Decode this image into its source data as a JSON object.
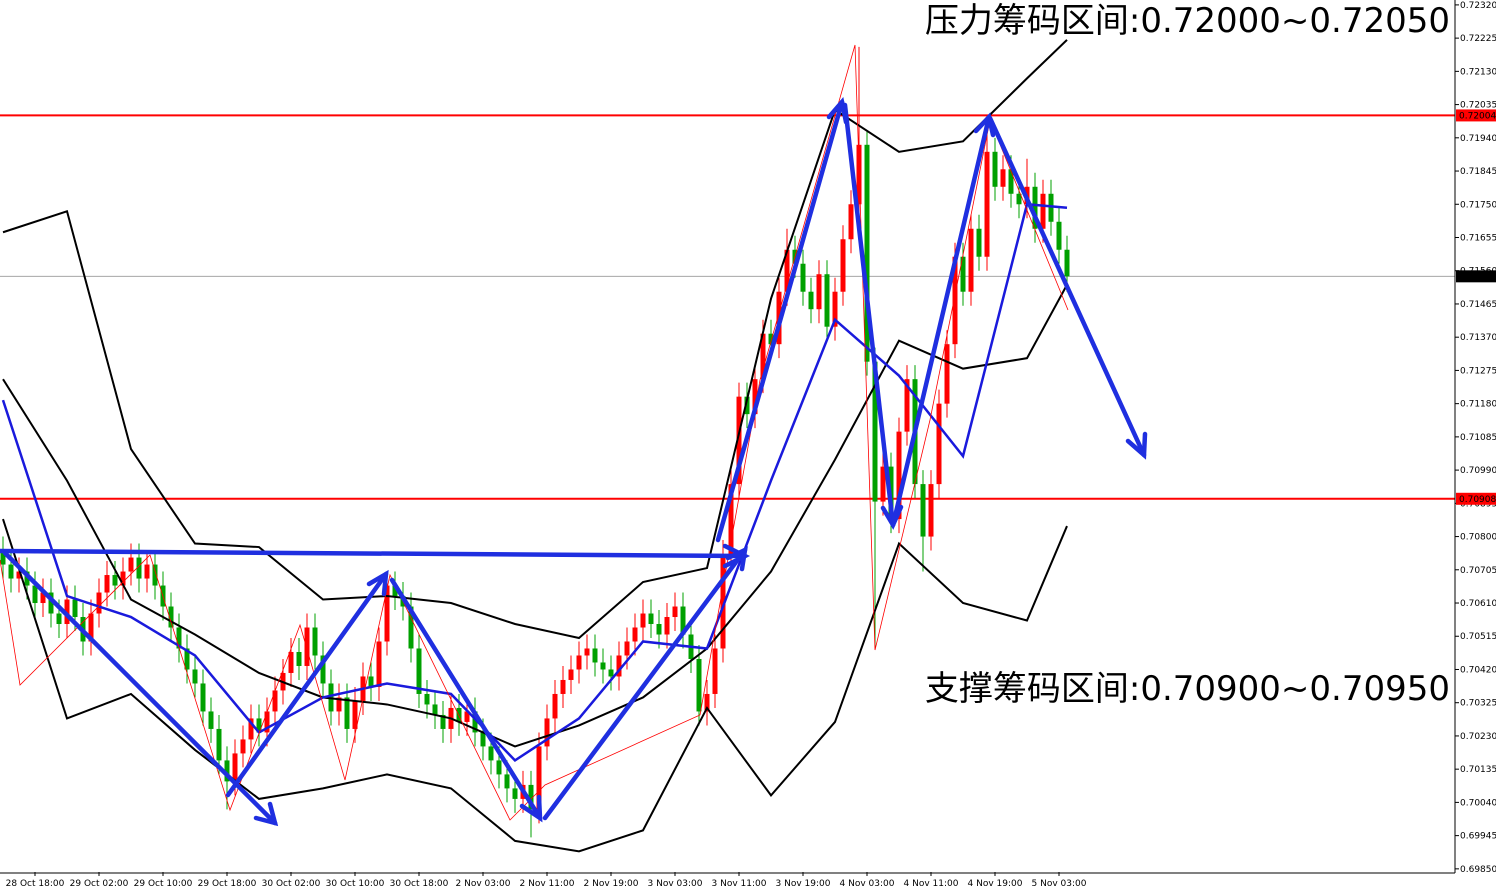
{
  "chart_data": {
    "type": "candlestick",
    "up_color": "#ff0000",
    "down_color": "#00a000",
    "ylim": [
      0.69841,
      0.72334
    ],
    "yticks": [
      {
        "value": 0.7232,
        "label": "0.72320"
      },
      {
        "value": 0.72225,
        "label": "0.72225"
      },
      {
        "value": 0.7213,
        "label": "0.72130"
      },
      {
        "value": 0.72035,
        "label": "0.72035"
      },
      {
        "value": 0.7194,
        "label": "0.71940"
      },
      {
        "value": 0.71845,
        "label": "0.71845"
      },
      {
        "value": 0.7175,
        "label": "0.71750"
      },
      {
        "value": 0.71655,
        "label": "0.71655"
      },
      {
        "value": 0.7156,
        "label": "0.71560"
      },
      {
        "value": 0.71465,
        "label": "0.71465"
      },
      {
        "value": 0.7137,
        "label": "0.71370"
      },
      {
        "value": 0.71275,
        "label": "0.71275"
      },
      {
        "value": 0.7118,
        "label": "0.71180"
      },
      {
        "value": 0.71085,
        "label": "0.71085"
      },
      {
        "value": 0.7099,
        "label": "0.70990"
      },
      {
        "value": 0.70895,
        "label": "0.70895"
      },
      {
        "value": 0.708,
        "label": "0.70800"
      },
      {
        "value": 0.70705,
        "label": "0.70705"
      },
      {
        "value": 0.7061,
        "label": "0.70610"
      },
      {
        "value": 0.70515,
        "label": "0.70515"
      },
      {
        "value": 0.7042,
        "label": "0.70420"
      },
      {
        "value": 0.70325,
        "label": "0.70325"
      },
      {
        "value": 0.7023,
        "label": "0.70230"
      },
      {
        "value": 0.70135,
        "label": "0.70135"
      },
      {
        "value": 0.7004,
        "label": "0.70040"
      },
      {
        "value": 0.69945,
        "label": "0.69945"
      },
      {
        "value": 0.6985,
        "label": "0.69850"
      }
    ],
    "hlines": [
      {
        "value": 0.72004,
        "color": "#ff0000"
      },
      {
        "value": 0.70908,
        "color": "#ff0000"
      },
      {
        "value": 0.71544,
        "color": "#999999"
      }
    ],
    "annotations": [
      "压力筹码区间:0.72000~0.72050",
      "支撑筹码区间:0.70900~0.70950"
    ],
    "categories": [
      null,
      null,
      null,
      null,
      "28 Oct 18:00",
      null,
      null,
      null,
      null,
      null,
      null,
      null,
      "29 Oct 02:00",
      null,
      null,
      null,
      null,
      null,
      null,
      null,
      "29 Oct 10:00",
      null,
      null,
      null,
      null,
      null,
      null,
      null,
      "29 Oct 18:00",
      null,
      null,
      null,
      null,
      null,
      null,
      null,
      "30 Oct 02:00",
      null,
      null,
      null,
      null,
      null,
      null,
      null,
      "30 Oct 10:00",
      null,
      null,
      null,
      null,
      null,
      null,
      null,
      "30 Oct 18:00",
      null,
      null,
      null,
      null,
      null,
      null,
      null,
      "2 Nov 03:00",
      null,
      null,
      null,
      null,
      null,
      null,
      null,
      "2 Nov 11:00",
      null,
      null,
      null,
      null,
      null,
      null,
      null,
      "2 Nov 19:00",
      null,
      null,
      null,
      null,
      null,
      null,
      null,
      "3 Nov 03:00",
      null,
      null,
      null,
      null,
      null,
      null,
      null,
      "3 Nov 11:00",
      null,
      null,
      null,
      null,
      null,
      null,
      null,
      "3 Nov 19:00",
      null,
      null,
      null,
      null,
      null,
      null,
      null,
      "4 Nov 03:00",
      null,
      null,
      null,
      null,
      null,
      null,
      null,
      "4 Nov 11:00",
      null,
      null,
      null,
      null,
      null,
      null,
      null,
      "4 Nov 19:00",
      null,
      null,
      null,
      null,
      null,
      null,
      null,
      "5 Nov 03:00",
      null
    ],
    "open": [
      0.7076,
      0.7072,
      0.7068,
      0.707,
      0.7066,
      0.7061,
      0.7064,
      0.7058,
      0.7055,
      0.7062,
      0.7057,
      0.705,
      0.7058,
      0.7064,
      0.7069,
      0.7066,
      0.707,
      0.7074,
      0.7068,
      0.7072,
      0.7066,
      0.706,
      0.7054,
      0.7048,
      0.7042,
      0.7038,
      0.703,
      0.7025,
      0.7016,
      0.701,
      0.7018,
      0.7022,
      0.7028,
      0.7024,
      0.703,
      0.7036,
      0.7041,
      0.7047,
      0.7043,
      0.7054,
      0.7046,
      0.7038,
      0.703,
      0.7034,
      0.7025,
      0.7033,
      0.704,
      0.7037,
      0.705,
      0.7066,
      0.7063,
      0.706,
      0.7048,
      0.7035,
      0.7032,
      0.7029,
      0.7025,
      0.7031,
      0.7027,
      0.703,
      0.7024,
      0.702,
      0.7016,
      0.7012,
      0.7008,
      0.7005,
      0.7009,
      0.7002,
      0.702,
      0.7028,
      0.7035,
      0.7039,
      0.7042,
      0.7046,
      0.7048,
      0.7044,
      0.7042,
      0.704,
      0.7046,
      0.705,
      0.7054,
      0.7058,
      0.7055,
      0.7052,
      0.7057,
      0.706,
      0.7052,
      0.7045,
      0.703,
      0.7035,
      0.7048,
      0.7075,
      0.7095,
      0.712,
      0.7115,
      0.7125,
      0.7138,
      0.7135,
      0.715,
      0.7162,
      0.7158,
      0.715,
      0.7145,
      0.7155,
      0.714,
      0.715,
      0.7165,
      0.7175,
      0.7192,
      0.713,
      0.709,
      0.71,
      0.7085,
      0.711,
      0.7125,
      0.7095,
      0.708,
      0.7095,
      0.7118,
      0.7135,
      0.716,
      0.715,
      0.7168,
      0.716,
      0.719,
      0.718,
      0.7185,
      0.7178,
      0.7175,
      0.718,
      0.7168,
      0.7178,
      0.717,
      0.7162
    ],
    "high": [
      0.708,
      0.7076,
      0.7074,
      0.7074,
      0.707,
      0.7068,
      0.7068,
      0.7062,
      0.7066,
      0.7066,
      0.7061,
      0.7062,
      0.7068,
      0.7073,
      0.7073,
      0.7074,
      0.7078,
      0.7078,
      0.7076,
      0.7076,
      0.707,
      0.7064,
      0.7058,
      0.7052,
      0.7046,
      0.7042,
      0.7034,
      0.7029,
      0.702,
      0.7022,
      0.7026,
      0.7032,
      0.7032,
      0.7034,
      0.704,
      0.7045,
      0.7051,
      0.7051,
      0.7058,
      0.7058,
      0.705,
      0.7042,
      0.7038,
      0.7038,
      0.7037,
      0.7044,
      0.7044,
      0.7054,
      0.707,
      0.707,
      0.7067,
      0.7064,
      0.7052,
      0.7039,
      0.7036,
      0.7033,
      0.7035,
      0.7035,
      0.7034,
      0.7034,
      0.7028,
      0.7024,
      0.702,
      0.7016,
      0.7012,
      0.7013,
      0.7013,
      0.7024,
      0.7032,
      0.7039,
      0.7043,
      0.7046,
      0.705,
      0.7052,
      0.7052,
      0.7048,
      0.7046,
      0.705,
      0.7054,
      0.7058,
      0.7062,
      0.7062,
      0.7059,
      0.7061,
      0.7064,
      0.7064,
      0.7056,
      0.7049,
      0.7039,
      0.7052,
      0.7079,
      0.7099,
      0.7124,
      0.7124,
      0.7129,
      0.7142,
      0.7142,
      0.7154,
      0.7168,
      0.7166,
      0.7162,
      0.7154,
      0.7159,
      0.7159,
      0.7154,
      0.7169,
      0.7179,
      0.722,
      0.7196,
      0.7134,
      0.7104,
      0.7104,
      0.7114,
      0.7129,
      0.7129,
      0.7099,
      0.7099,
      0.7122,
      0.7139,
      0.7164,
      0.7164,
      0.7172,
      0.7172,
      0.7196,
      0.7194,
      0.7189,
      0.7189,
      0.7182,
      0.7188,
      0.7184,
      0.7182,
      0.7182,
      0.7174,
      0.7166
    ],
    "low": [
      0.7068,
      0.7064,
      0.7064,
      0.7062,
      0.7057,
      0.7057,
      0.7054,
      0.7051,
      0.7051,
      0.7053,
      0.7046,
      0.7046,
      0.7054,
      0.706,
      0.7062,
      0.7062,
      0.7066,
      0.7064,
      0.7064,
      0.7062,
      0.7056,
      0.705,
      0.7044,
      0.7038,
      0.7034,
      0.7026,
      0.7021,
      0.7012,
      0.7002,
      0.7006,
      0.7014,
      0.7018,
      0.702,
      0.702,
      0.7026,
      0.7032,
      0.7037,
      0.7039,
      0.7039,
      0.7042,
      0.7034,
      0.7026,
      0.7026,
      0.7021,
      0.7021,
      0.7029,
      0.7033,
      0.7033,
      0.7046,
      0.7059,
      0.7056,
      0.7044,
      0.7031,
      0.7028,
      0.7025,
      0.7021,
      0.7021,
      0.7023,
      0.7023,
      0.702,
      0.7016,
      0.7012,
      0.7008,
      0.7004,
      0.7001,
      0.7001,
      0.6994,
      0.6998,
      0.7016,
      0.7024,
      0.7031,
      0.7035,
      0.7038,
      0.7042,
      0.704,
      0.7038,
      0.7036,
      0.7036,
      0.7042,
      0.7046,
      0.705,
      0.7051,
      0.7048,
      0.7048,
      0.7053,
      0.7048,
      0.7041,
      0.7026,
      0.7026,
      0.7031,
      0.7044,
      0.7071,
      0.7091,
      0.7111,
      0.7111,
      0.7121,
      0.7131,
      0.7131,
      0.7146,
      0.7154,
      0.7146,
      0.7141,
      0.7141,
      0.7136,
      0.7136,
      0.7146,
      0.7161,
      0.7171,
      0.7126,
      0.7048,
      0.7086,
      0.7081,
      0.7081,
      0.7106,
      0.7091,
      0.707,
      0.7076,
      0.7091,
      0.7114,
      0.7131,
      0.7146,
      0.7146,
      0.7156,
      0.7156,
      0.7176,
      0.7176,
      0.7174,
      0.7171,
      0.7171,
      0.7164,
      0.7164,
      0.7166,
      0.7158,
      0.715
    ],
    "close": [
      0.7072,
      0.7068,
      0.707,
      0.7066,
      0.7061,
      0.7064,
      0.7058,
      0.7055,
      0.7062,
      0.7057,
      0.705,
      0.7058,
      0.7064,
      0.7069,
      0.7066,
      0.707,
      0.7074,
      0.7068,
      0.7072,
      0.7066,
      0.706,
      0.7054,
      0.7048,
      0.7042,
      0.7038,
      0.703,
      0.7025,
      0.7016,
      0.701,
      0.7018,
      0.7022,
      0.7028,
      0.7024,
      0.703,
      0.7036,
      0.7041,
      0.7047,
      0.7043,
      0.7054,
      0.7046,
      0.7038,
      0.703,
      0.7034,
      0.7025,
      0.7033,
      0.704,
      0.7037,
      0.705,
      0.7066,
      0.7063,
      0.706,
      0.7048,
      0.7035,
      0.7032,
      0.7029,
      0.7025,
      0.7031,
      0.7027,
      0.703,
      0.7024,
      0.702,
      0.7016,
      0.7012,
      0.7008,
      0.7005,
      0.7009,
      0.7002,
      0.702,
      0.7028,
      0.7035,
      0.7039,
      0.7042,
      0.7046,
      0.7048,
      0.7044,
      0.7042,
      0.704,
      0.7046,
      0.705,
      0.7054,
      0.7058,
      0.7055,
      0.7052,
      0.7057,
      0.706,
      0.7052,
      0.7045,
      0.703,
      0.7035,
      0.7048,
      0.7075,
      0.7095,
      0.712,
      0.7115,
      0.7125,
      0.7138,
      0.7135,
      0.715,
      0.7162,
      0.7158,
      0.715,
      0.7145,
      0.7155,
      0.714,
      0.715,
      0.7165,
      0.7175,
      0.7192,
      0.713,
      0.709,
      0.71,
      0.7085,
      0.711,
      0.7125,
      0.7095,
      0.708,
      0.7095,
      0.7118,
      0.7135,
      0.716,
      0.715,
      0.7168,
      0.716,
      0.719,
      0.718,
      0.7185,
      0.7178,
      0.7175,
      0.718,
      0.7168,
      0.7178,
      0.717,
      0.7162,
      0.71544
    ],
    "overlays": [
      {
        "color": "#000000",
        "x": [
          0,
          8,
          16,
          24,
          32,
          40,
          48,
          56,
          64,
          72,
          80,
          88,
          96,
          104,
          112,
          120,
          128,
          133
        ],
        "values": [
          0.7167,
          0.7173,
          0.7105,
          0.7078,
          0.7077,
          0.7062,
          0.7063,
          0.7061,
          0.7055,
          0.7051,
          0.7067,
          0.7071,
          0.7148,
          0.7202,
          0.719,
          0.7193,
          0.7211,
          0.7222
        ]
      },
      {
        "color": "#000000",
        "x": [
          0,
          8,
          16,
          24,
          32,
          40,
          48,
          56,
          64,
          72,
          80,
          88,
          96,
          104,
          112,
          120,
          128,
          133
        ],
        "values": [
          0.7125,
          0.7096,
          0.7062,
          0.7052,
          0.7041,
          0.7034,
          0.7032,
          0.7028,
          0.702,
          0.7026,
          0.7034,
          0.7048,
          0.707,
          0.7102,
          0.7136,
          0.7128,
          0.7131,
          0.7152
        ]
      },
      {
        "color": "#000000",
        "x": [
          0,
          8,
          16,
          24,
          32,
          40,
          48,
          56,
          64,
          72,
          80,
          88,
          96,
          104,
          112,
          120,
          128,
          133
        ],
        "values": [
          0.7085,
          0.7028,
          0.7035,
          0.7019,
          0.7005,
          0.7008,
          0.7012,
          0.7008,
          0.6993,
          0.699,
          0.6996,
          0.7031,
          0.7006,
          0.7027,
          0.7078,
          0.7061,
          0.7056,
          0.7083
        ]
      },
      {
        "color": "#1a1adc",
        "x": [
          0,
          8,
          16,
          24,
          32,
          40,
          48,
          56,
          64,
          72,
          80,
          88,
          96,
          104,
          112,
          120,
          128,
          133
        ],
        "values": [
          0.7119,
          0.7063,
          0.7057,
          0.7046,
          0.7024,
          0.7034,
          0.7038,
          0.7035,
          0.7016,
          0.7028,
          0.705,
          0.7048,
          0.7096,
          0.7142,
          0.7126,
          0.7103,
          0.7175,
          0.7174
        ]
      }
    ]
  }
}
